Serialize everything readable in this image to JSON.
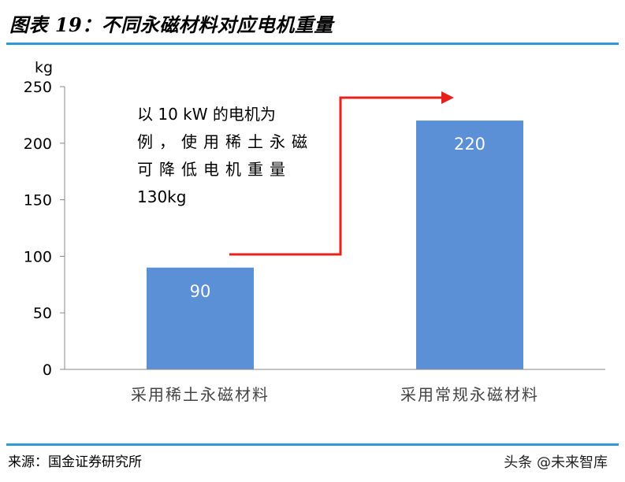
{
  "header": {
    "title": "图表 19：不同永磁材料对应电机重量"
  },
  "footer": {
    "source": "来源：国金证券研究所",
    "watermark": "头条 @未来智库"
  },
  "annotation": {
    "lines": [
      "以 10 kW 的电机为",
      "例，使用稀土永磁",
      "可降低电机重量",
      "130kg"
    ]
  },
  "colors": {
    "bar": "#5b8fd6",
    "arrow": "#e8201c",
    "rule": "#2e9bd6"
  },
  "chart_data": {
    "type": "bar",
    "title": "",
    "ylabel": "kg",
    "xlabel": "",
    "categories": [
      "采用稀土永磁材料",
      "采用常规永磁材料"
    ],
    "values": [
      90,
      220
    ],
    "ylim": [
      0,
      250
    ],
    "yticks": [
      0,
      50,
      100,
      150,
      200,
      250
    ],
    "grid": false,
    "legend": "none"
  }
}
